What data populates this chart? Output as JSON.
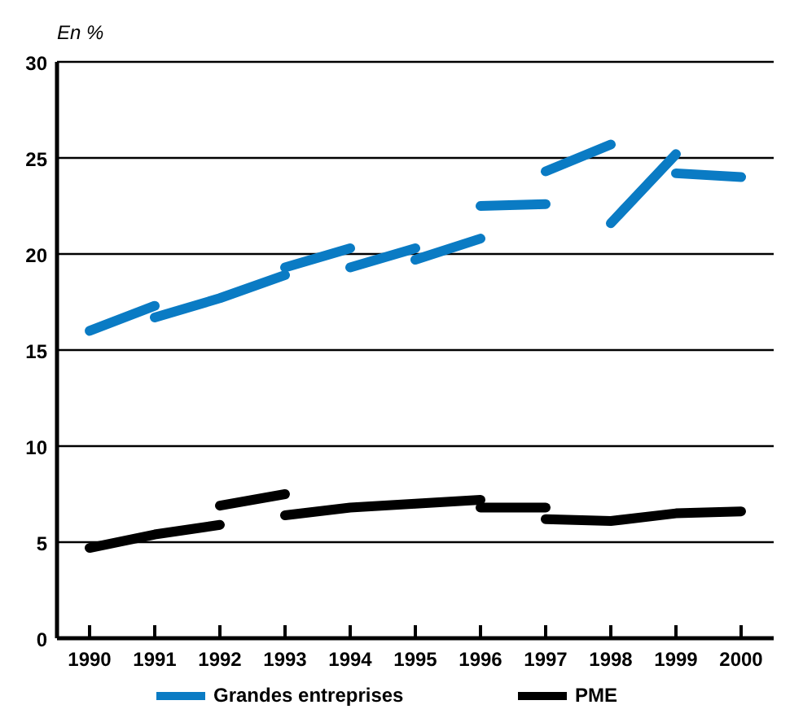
{
  "chart_data": {
    "type": "line",
    "ylabel": "En %",
    "xlim": [
      1989.5,
      2000.5
    ],
    "xticks": [
      1990,
      1991,
      1992,
      1993,
      1994,
      1995,
      1996,
      1997,
      1998,
      1999,
      2000
    ],
    "ylim": [
      0,
      30
    ],
    "yticks": [
      0,
      5,
      10,
      15,
      20,
      25,
      30
    ],
    "grid": "y",
    "legend": "bottom",
    "marker": "none",
    "line_style": "solid",
    "series": [
      {
        "name": "Grandes entreprises",
        "color": "#0a7bc4",
        "x": [
          1990,
          1991
        ],
        "values": [
          16.0,
          17.3
        ]
      },
      {
        "color": "#0a7bc4",
        "x": [
          1991,
          1992,
          1993
        ],
        "values": [
          16.7,
          17.7,
          18.9
        ]
      },
      {
        "color": "#0a7bc4",
        "x": [
          1993,
          1994
        ],
        "values": [
          19.3,
          20.3
        ]
      },
      {
        "color": "#0a7bc4",
        "x": [
          1994,
          1995
        ],
        "values": [
          19.3,
          20.3
        ]
      },
      {
        "color": "#0a7bc4",
        "x": [
          1995,
          1996
        ],
        "values": [
          19.7,
          20.8
        ]
      },
      {
        "color": "#0a7bc4",
        "x": [
          1996,
          1997
        ],
        "values": [
          22.5,
          22.6
        ]
      },
      {
        "color": "#0a7bc4",
        "x": [
          1997,
          1998
        ],
        "values": [
          24.3,
          25.7
        ]
      },
      {
        "color": "#0a7bc4",
        "x": [
          1998,
          1999
        ],
        "values": [
          21.6,
          25.2
        ]
      },
      {
        "color": "#0a7bc4",
        "x": [
          1999,
          2000
        ],
        "values": [
          24.2,
          24.0
        ]
      },
      {
        "name": "PME",
        "color": "#000000",
        "x": [
          1990,
          1991,
          1992
        ],
        "values": [
          4.7,
          5.4,
          5.9
        ]
      },
      {
        "color": "#000000",
        "x": [
          1992,
          1993
        ],
        "values": [
          6.9,
          7.5
        ]
      },
      {
        "color": "#000000",
        "x": [
          1993,
          1994,
          1995,
          1996
        ],
        "values": [
          6.4,
          6.8,
          7.0,
          7.2
        ]
      },
      {
        "color": "#000000",
        "x": [
          1996,
          1997
        ],
        "values": [
          6.8,
          6.8
        ]
      },
      {
        "color": "#000000",
        "x": [
          1997,
          1998,
          1999,
          2000
        ],
        "values": [
          6.2,
          6.1,
          6.5,
          6.6
        ]
      }
    ]
  }
}
